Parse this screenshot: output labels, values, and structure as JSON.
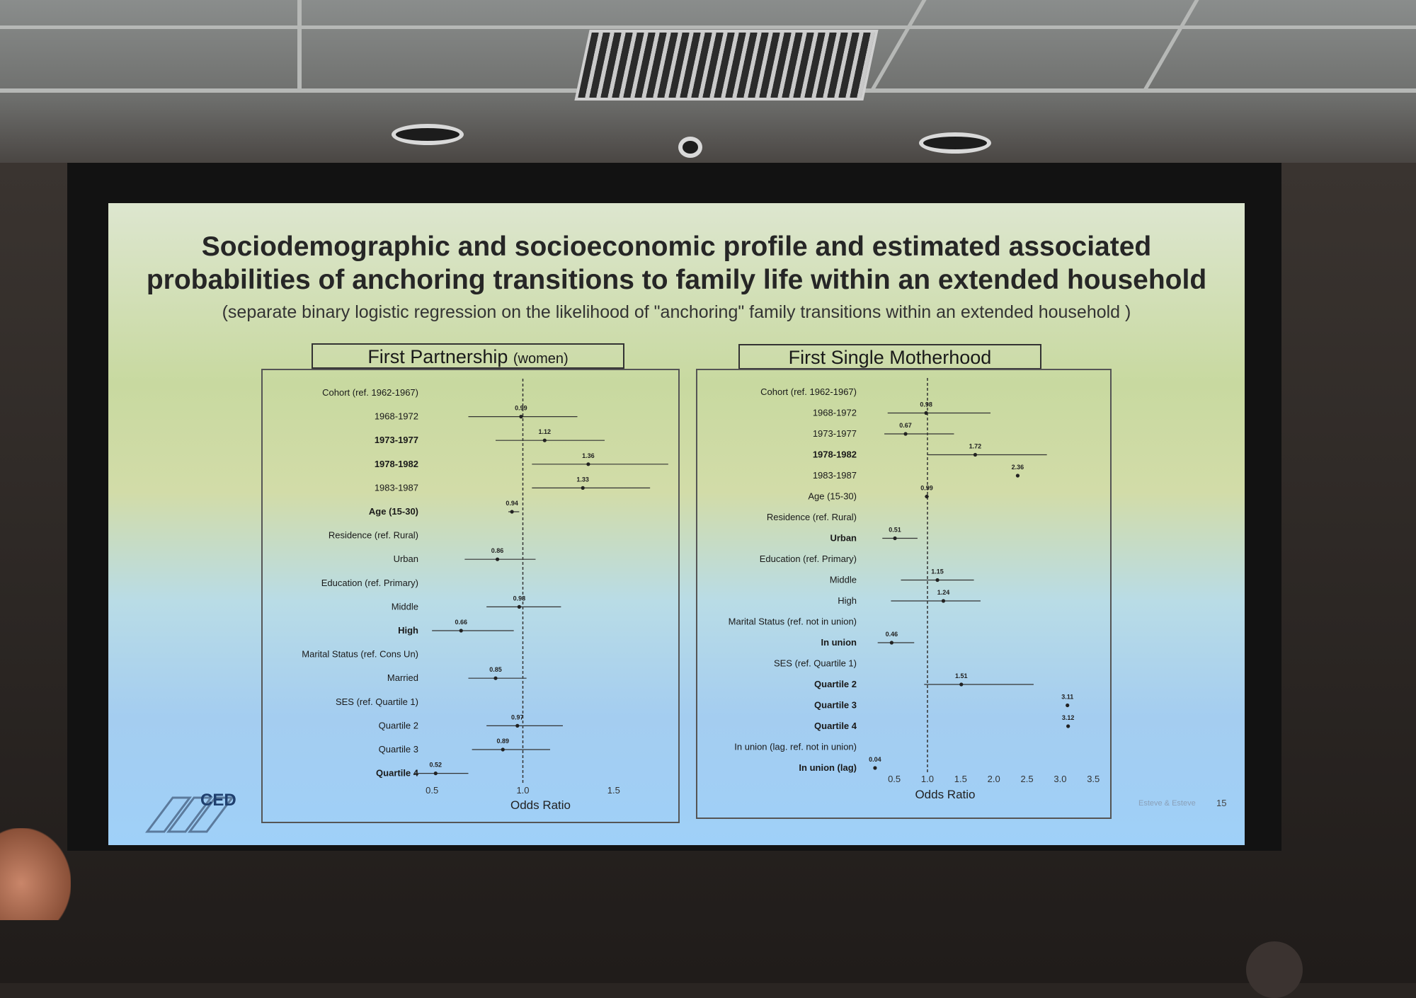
{
  "slide": {
    "title_line1": "Sociodemographic and socioeconomic profile and estimated associated",
    "title_line2": "probabilities of anchoring transitions to family life within an extended household",
    "subtitle": "(separate binary logistic regression on the likelihood of \"anchoring\" family transitions within an extended household )",
    "logo_text": "CED",
    "footer_note": "Esteve & Esteve",
    "page_number": "15"
  },
  "chart_data": [
    {
      "type": "forest",
      "title": "First Partnership",
      "title_suffix": "(women)",
      "xlabel": "Odds Ratio",
      "xlim": [
        0.25,
        1.75
      ],
      "xticks": [
        "0.5",
        "1.0",
        "1.5"
      ],
      "reference_line": 1.0,
      "rows": [
        {
          "label": "Cohort (ref. 1962-1967)",
          "header": true
        },
        {
          "label": "1968-1972",
          "or": 0.99,
          "ci": [
            0.7,
            1.3
          ],
          "text": "0.99"
        },
        {
          "label": "1973-1977",
          "or": 1.12,
          "ci": [
            0.85,
            1.45
          ],
          "text": "1.12",
          "bold": true
        },
        {
          "label": "1978-1982",
          "or": 1.36,
          "ci": [
            1.05,
            1.8
          ],
          "text": "1.36",
          "bold": true
        },
        {
          "label": "1983-1987",
          "or": 1.33,
          "ci": [
            1.05,
            1.7
          ],
          "text": "1.33"
        },
        {
          "label": "Age (15-30)",
          "or": 0.94,
          "ci": [
            0.92,
            0.98
          ],
          "text": "0.94",
          "bold": true
        },
        {
          "label": "Residence (ref. Rural)",
          "header": true
        },
        {
          "label": "Urban",
          "or": 0.86,
          "ci": [
            0.68,
            1.07
          ],
          "text": "0.86"
        },
        {
          "label": "Education (ref. Primary)",
          "header": true
        },
        {
          "label": "Middle",
          "or": 0.98,
          "ci": [
            0.8,
            1.21
          ],
          "text": "0.98"
        },
        {
          "label": "High",
          "or": 0.66,
          "ci": [
            0.5,
            0.95
          ],
          "text": "0.66",
          "bold": true
        },
        {
          "label": "Marital Status (ref. Cons Un)",
          "header": true
        },
        {
          "label": "Married",
          "or": 0.85,
          "ci": [
            0.7,
            1.02
          ],
          "text": "0.85"
        },
        {
          "label": "SES (ref. Quartile 1)",
          "header": true
        },
        {
          "label": "Quartile 2",
          "or": 0.97,
          "ci": [
            0.8,
            1.22
          ],
          "text": "0.97"
        },
        {
          "label": "Quartile 3",
          "or": 0.89,
          "ci": [
            0.72,
            1.15
          ],
          "text": "0.89"
        },
        {
          "label": "Quartile 4",
          "or": 0.52,
          "ci": [
            0.4,
            0.7
          ],
          "text": "0.52",
          "bold": true
        }
      ]
    },
    {
      "type": "forest",
      "title": "First Single Motherhood",
      "title_suffix": "",
      "xlabel": "Odds Ratio",
      "xlim": [
        0.2,
        3.7
      ],
      "xticks": [
        "0.5",
        "1.0",
        "1.5",
        "2.0",
        "2.5",
        "3.0",
        "3.5"
      ],
      "reference_line": 1.0,
      "rows": [
        {
          "label": "Cohort (ref. 1962-1967)",
          "header": true
        },
        {
          "label": "1968-1972",
          "or": 0.98,
          "ci": [
            0.4,
            1.95
          ],
          "text": "0.98"
        },
        {
          "label": "1973-1977",
          "or": 0.67,
          "ci": [
            0.35,
            1.4
          ],
          "text": "0.67"
        },
        {
          "label": "1978-1982",
          "or": 1.72,
          "ci": [
            1.0,
            2.8
          ],
          "text": "1.72",
          "bold": true
        },
        {
          "label": "1983-1987",
          "or": 2.36,
          "ci": null,
          "text": "2.36"
        },
        {
          "label": "Age (15-30)",
          "or": 0.99,
          "ci": [
            0.96,
            1.02
          ],
          "text": "0.99"
        },
        {
          "label": "Residence (ref. Rural)",
          "header": true
        },
        {
          "label": "Urban",
          "or": 0.51,
          "ci": [
            0.32,
            0.85
          ],
          "text": "0.51",
          "bold": true
        },
        {
          "label": "Education (ref. Primary)",
          "header": true
        },
        {
          "label": "Middle",
          "or": 1.15,
          "ci": [
            0.6,
            1.7
          ],
          "text": "1.15"
        },
        {
          "label": "High",
          "or": 1.24,
          "ci": [
            0.45,
            1.8
          ],
          "text": "1.24"
        },
        {
          "label": "Marital Status (ref. not in union)",
          "header": true
        },
        {
          "label": "In union",
          "or": 0.46,
          "ci": [
            0.25,
            0.8
          ],
          "text": "0.46",
          "bold": true
        },
        {
          "label": "SES (ref. Quartile 1)",
          "header": true
        },
        {
          "label": "Quartile 2",
          "or": 1.51,
          "ci": [
            0.95,
            2.6
          ],
          "text": "1.51",
          "bold": true
        },
        {
          "label": "Quartile 3",
          "or": 3.11,
          "ci": null,
          "text": "3.11",
          "bold": true
        },
        {
          "label": "Quartile 4",
          "or": 3.12,
          "ci": null,
          "text": "3.12",
          "bold": true
        },
        {
          "label": "In union (lag. ref. not in union)",
          "header": true
        },
        {
          "label": "In union (lag)",
          "or": 0.04,
          "ci": null,
          "text": "0.04",
          "bold": true
        }
      ]
    }
  ]
}
